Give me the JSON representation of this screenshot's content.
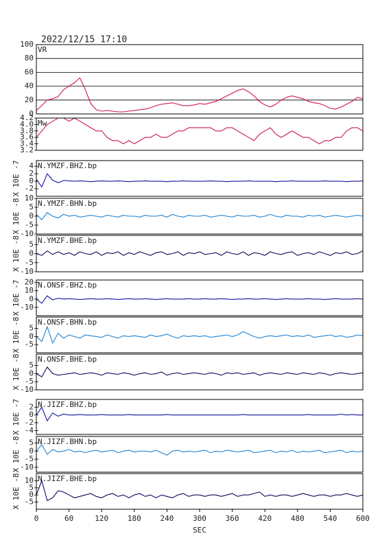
{
  "chart_data": {
    "type": "multi-panel-line",
    "title": "2022/12/15  17:10",
    "xlabel": "SEC",
    "x": [
      0,
      10,
      20,
      30,
      40,
      50,
      60,
      70,
      80,
      90,
      100,
      110,
      120,
      130,
      140,
      150,
      160,
      170,
      180,
      190,
      200,
      210,
      220,
      230,
      240,
      250,
      260,
      270,
      280,
      290,
      300,
      310,
      320,
      330,
      340,
      350,
      360,
      370,
      380,
      390,
      400,
      410,
      420,
      430,
      440,
      450,
      460,
      470,
      480,
      490,
      500,
      510,
      520,
      530,
      540,
      550,
      560,
      570,
      580,
      590,
      600
    ],
    "xlim": [
      0,
      600
    ],
    "xticks": [
      0,
      60,
      120,
      180,
      240,
      300,
      360,
      420,
      480,
      540,
      600
    ],
    "panels": [
      {
        "label": "VR",
        "color": "#d01848",
        "grid": true,
        "ylim": [
          0,
          100
        ],
        "yticks": [
          0,
          20,
          40,
          60,
          80,
          100
        ],
        "values": [
          5,
          12,
          20,
          22,
          25,
          35,
          40,
          45,
          52,
          35,
          15,
          6,
          4,
          5,
          4,
          3,
          3,
          4,
          5,
          6,
          7,
          9,
          12,
          14,
          15,
          16,
          14,
          12,
          12,
          13,
          15,
          14,
          16,
          18,
          22,
          26,
          30,
          34,
          36,
          32,
          26,
          18,
          13,
          10,
          14,
          20,
          24,
          26,
          24,
          22,
          18,
          16,
          15,
          12,
          8,
          7,
          10,
          14,
          18,
          24,
          22
        ]
      },
      {
        "label": "Mw",
        "color": "#c8184a",
        "grid": false,
        "ylim": [
          3.2,
          4.2
        ],
        "yticks": [
          3.2,
          3.4,
          3.6,
          3.8,
          {
            "value": 4,
            "label": "4.0"
          },
          4.2
        ],
        "values": [
          3.6,
          3.8,
          4.0,
          4.1,
          4.2,
          4.2,
          4.1,
          4.2,
          4.1,
          4.0,
          3.9,
          3.8,
          3.8,
          3.6,
          3.5,
          3.5,
          3.4,
          3.5,
          3.4,
          3.5,
          3.6,
          3.6,
          3.7,
          3.6,
          3.6,
          3.7,
          3.8,
          3.8,
          3.9,
          3.9,
          3.9,
          3.9,
          3.9,
          3.8,
          3.8,
          3.9,
          3.9,
          3.8,
          3.7,
          3.6,
          3.5,
          3.7,
          3.8,
          3.9,
          3.7,
          3.6,
          3.7,
          3.8,
          3.7,
          3.6,
          3.6,
          3.5,
          3.4,
          3.5,
          3.5,
          3.6,
          3.6,
          3.8,
          3.9,
          3.9,
          3.8
        ]
      },
      {
        "label": "N.YMZF.BHZ.bp",
        "unit": "X 10E -7",
        "color": "#1414a0",
        "ylim": [
          -4,
          5.5
        ],
        "yticks": [
          4,
          2,
          0,
          -2
        ],
        "values": [
          0.5,
          -1.5,
          2,
          0.3,
          -0.4,
          0.2,
          0.1,
          0,
          0.1,
          0,
          -0.1,
          0,
          0.1,
          0,
          0,
          0.1,
          0,
          -0.1,
          0,
          0,
          0.1,
          0,
          0,
          0,
          -0.1,
          0,
          0,
          0.1,
          0,
          0,
          0,
          0,
          0.1,
          0,
          0,
          -0.1,
          0,
          0,
          0,
          0.1,
          0,
          0,
          0,
          0,
          -0.1,
          0,
          0,
          0.1,
          0,
          0,
          0,
          0,
          0,
          0.1,
          0,
          0,
          0,
          -0.1,
          0,
          0,
          0.1
        ]
      },
      {
        "label": "N.YMZF.BHN.bp",
        "unit": "X 10E -8",
        "color": "#1e80d0",
        "ylim": [
          -10,
          10
        ],
        "yticks": [
          10,
          5,
          0,
          -5,
          -10
        ],
        "values": [
          1,
          -2,
          2,
          0,
          -1,
          1,
          0,
          0.5,
          -0.5,
          0,
          0.5,
          0,
          -0.5,
          0.5,
          0,
          -0.5,
          0.5,
          0,
          0,
          -0.5,
          0.5,
          0,
          0,
          0.5,
          -0.5,
          1,
          0,
          -0.5,
          0.5,
          0,
          0,
          0.5,
          -0.5,
          0,
          0.5,
          0,
          -0.5,
          0.5,
          0,
          0,
          0.5,
          -0.5,
          0,
          1,
          0,
          -0.5,
          0.5,
          0,
          0,
          -0.5,
          0.5,
          0,
          0.5,
          -0.5,
          0,
          0.5,
          0,
          -0.5,
          0,
          0.5,
          0
        ]
      },
      {
        "label": "N.YMZF.BHE.bp",
        "unit": "X 10E -8",
        "color": "#0a0a5a",
        "ylim": [
          -10,
          10
        ],
        "yticks": [
          5,
          0,
          -5,
          -10
        ],
        "values": [
          0,
          -1,
          1.5,
          -0.5,
          1,
          -0.5,
          0.5,
          -1,
          1,
          0,
          -0.5,
          1,
          -1,
          0.5,
          0,
          1,
          -1,
          0.5,
          -0.5,
          1,
          0,
          -1,
          0.5,
          1,
          -0.5,
          0,
          1,
          -1,
          0.5,
          0,
          1,
          -0.5,
          0,
          0.5,
          -1,
          1,
          0,
          -0.5,
          1,
          -1,
          0.5,
          0,
          -1,
          1,
          0,
          -0.5,
          0.5,
          1,
          -1,
          0,
          0.5,
          -0.5,
          1,
          0,
          -1,
          0.5,
          0,
          1,
          -0.5,
          0,
          1.5
        ]
      },
      {
        "label": "N.ONSF.BHZ.bp",
        "unit": "X 10E -7",
        "color": "#1414a0",
        "ylim": [
          -20,
          23
        ],
        "yticks": [
          20,
          10,
          0,
          -10
        ],
        "values": [
          0,
          -5,
          4,
          -1,
          1,
          0,
          0.5,
          0,
          -0.5,
          0,
          0.5,
          0,
          0,
          0.5,
          0,
          -0.5,
          0,
          0.5,
          0,
          0,
          0.5,
          0,
          -0.5,
          0,
          0.5,
          0,
          0,
          0,
          0.5,
          0,
          0,
          0.5,
          0,
          0,
          0.5,
          0,
          -0.5,
          0,
          0,
          0.5,
          0,
          0,
          0.5,
          0,
          -0.5,
          0,
          0.5,
          0,
          0,
          0,
          0.5,
          0,
          0,
          -0.5,
          0,
          0.5,
          0,
          0,
          0,
          0.5,
          0
        ]
      },
      {
        "label": "N.ONSF.BHN.bp",
        "unit": "X 10E -8",
        "color": "#1e80d0",
        "ylim": [
          -10,
          12
        ],
        "yticks": [
          5,
          0,
          -5
        ],
        "values": [
          0,
          -3,
          6,
          -4,
          2,
          -1,
          1,
          0,
          -1,
          1,
          0.5,
          0,
          -0.5,
          1,
          0,
          -1,
          0.5,
          0,
          0.5,
          0,
          -0.5,
          1,
          0,
          0.5,
          1.5,
          0,
          -1,
          0.5,
          0,
          0.5,
          0,
          0.5,
          -0.5,
          0,
          0.5,
          1,
          0,
          1,
          3,
          1.5,
          0,
          -1,
          0,
          0.5,
          0,
          0.5,
          1,
          0,
          0.5,
          0,
          1,
          -0.5,
          0,
          0.5,
          1,
          0,
          0.5,
          -0.5,
          0,
          1,
          0.5
        ]
      },
      {
        "label": "N.ONSF.BHE.bp",
        "unit": "X 10E -8",
        "color": "#0a0a5a",
        "ylim": [
          -10,
          12
        ],
        "yticks": [
          5,
          0,
          -5,
          -10
        ],
        "values": [
          0,
          -2,
          4,
          0,
          -1,
          -0.5,
          0,
          0.5,
          -0.5,
          0,
          0.5,
          0,
          -1,
          0.5,
          0,
          -0.5,
          0.5,
          0,
          -1,
          0,
          0.5,
          -0.5,
          0,
          1,
          -1,
          0,
          0.5,
          -0.5,
          0,
          0.5,
          0,
          -0.5,
          0.5,
          0,
          -1,
          0.5,
          0,
          0.5,
          -0.5,
          0,
          0.5,
          -1,
          0,
          0.5,
          0,
          -0.5,
          0.5,
          0,
          -0.5,
          0.5,
          0,
          -0.5,
          0.5,
          0,
          -1,
          0,
          0.5,
          0,
          -0.5,
          0,
          0.5
        ]
      },
      {
        "label": "N.JIZF.BHZ.bp",
        "unit": "X 10E -7",
        "color": "#1414a0",
        "ylim": [
          -5,
          4
        ],
        "yticks": [
          2,
          0,
          -2,
          -4
        ],
        "values": [
          0,
          2,
          -1.5,
          0.5,
          -0.3,
          0.2,
          0,
          0,
          0.1,
          0,
          0,
          0,
          0.1,
          0,
          0,
          0,
          0,
          0.1,
          0,
          0,
          0,
          0,
          0,
          0,
          0.1,
          0,
          0,
          0,
          0,
          0,
          0,
          0,
          0,
          0,
          0,
          0,
          0,
          0,
          0.1,
          0,
          0,
          0,
          0,
          0,
          0,
          0,
          0,
          0,
          0,
          0,
          0.1,
          0,
          0,
          0,
          0,
          0,
          0.2,
          0,
          0.1,
          0,
          0
        ]
      },
      {
        "label": "N.JIZF.BHN.bp",
        "unit": "X 10E -8",
        "color": "#1e80d0",
        "ylim": [
          -13,
          9
        ],
        "yticks": [
          5,
          0,
          -5,
          -10
        ],
        "values": [
          0,
          4,
          -2,
          1,
          -0.5,
          0,
          1,
          -0.5,
          0,
          -1,
          0,
          0.5,
          -0.5,
          0,
          0.5,
          -1,
          0,
          0.5,
          -0.5,
          0,
          0,
          -0.5,
          0.5,
          -1,
          -2.5,
          0,
          0.5,
          -0.5,
          0,
          -0.5,
          0,
          0.5,
          -1,
          0,
          -0.5,
          0.5,
          0,
          -0.5,
          0,
          0.5,
          -1,
          -0.5,
          0,
          0.5,
          -1,
          0,
          -0.5,
          0.5,
          -1,
          0,
          -0.5,
          0,
          0.5,
          -1,
          -0.5,
          0,
          0.5,
          -1,
          0,
          -0.5,
          0
        ]
      },
      {
        "label": "N.JIZF.BHE.bp",
        "unit": "X 10E -8",
        "color": "#0a0a5a",
        "ylim": [
          -10,
          15
        ],
        "yticks": [
          10,
          5,
          0,
          -5
        ],
        "values": [
          0,
          10,
          -4,
          -2,
          3,
          2,
          0,
          -2,
          -1,
          0,
          1,
          -1,
          -2,
          0,
          1,
          -1,
          0,
          -2,
          0,
          1,
          -1,
          0,
          -2,
          0,
          -1,
          -2,
          0,
          1,
          -1,
          0,
          0,
          -1,
          0,
          0,
          -1,
          0,
          1,
          -1,
          0,
          0,
          1,
          2,
          -1,
          0,
          -1,
          0,
          0,
          -1,
          0,
          1,
          0,
          -1,
          0,
          0,
          -1,
          0,
          0,
          1,
          0,
          -1,
          0
        ]
      }
    ]
  }
}
